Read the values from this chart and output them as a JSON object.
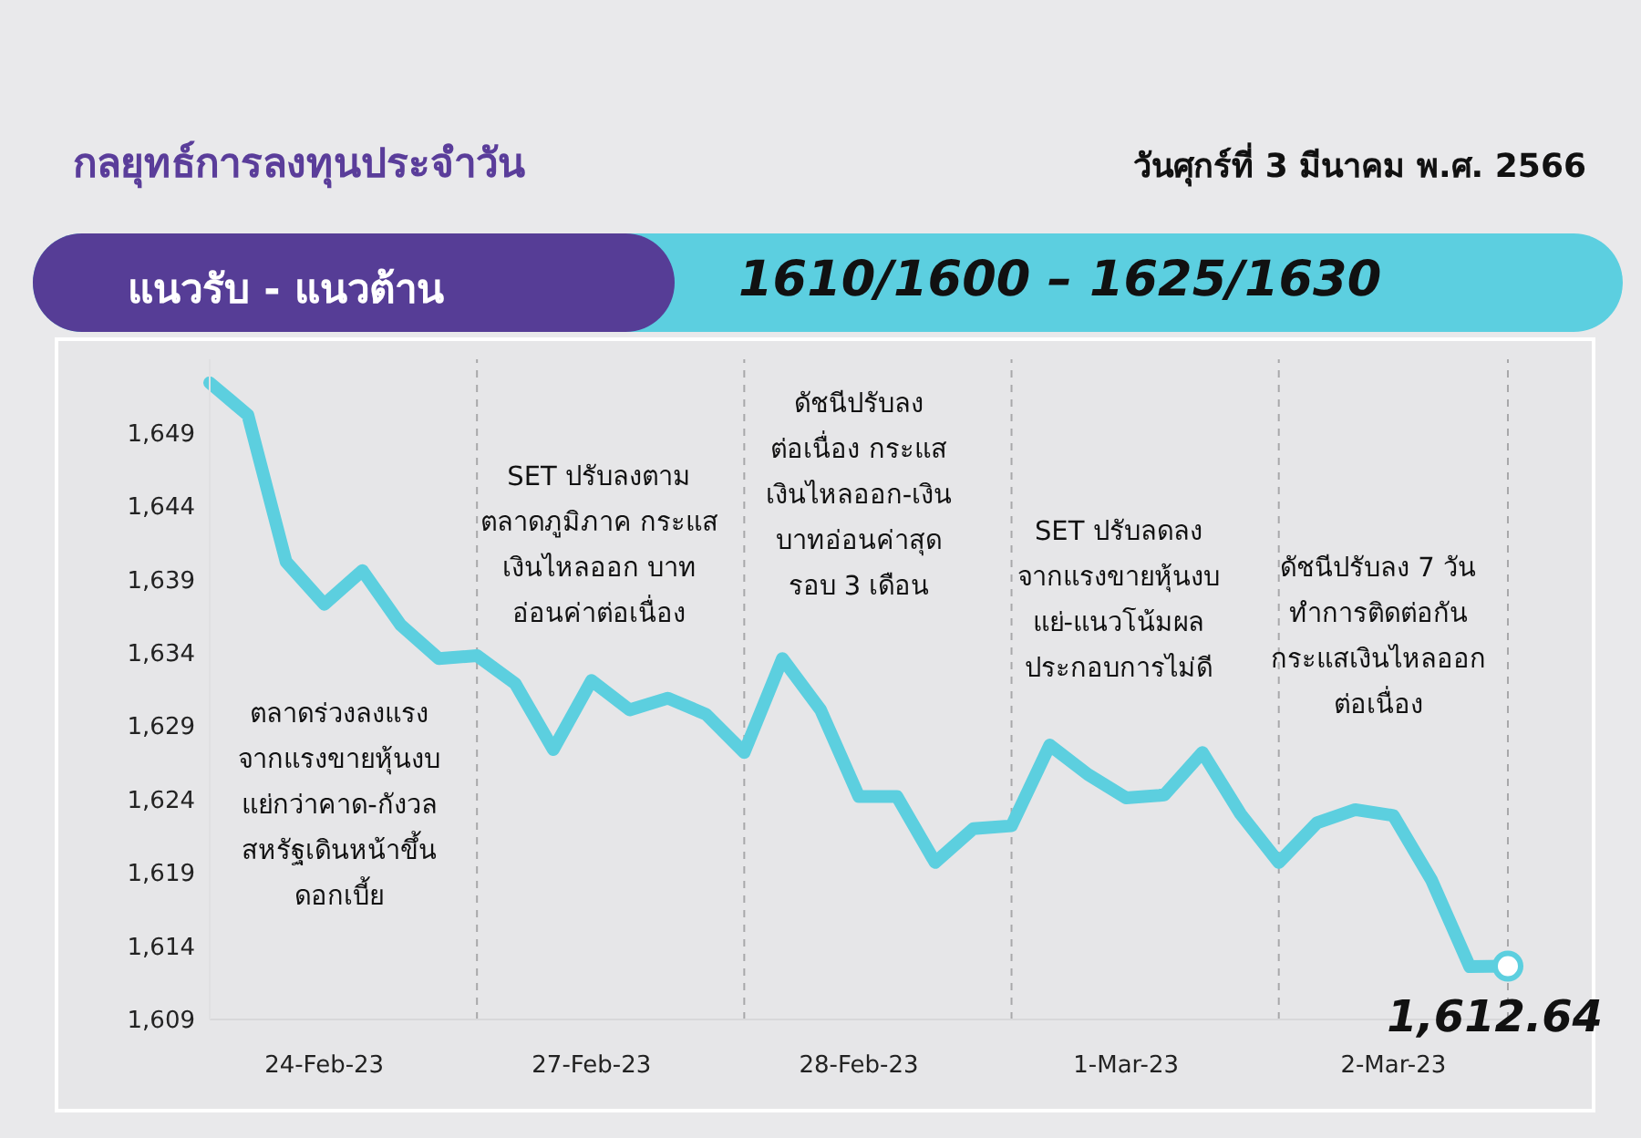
{
  "chart_data": {
    "type": "line",
    "title": "กลยุทธ์การลงทุนประจำวัน",
    "subtitle": "วันศุกร์ที่ 3 มีนาคม พ.ศ. 2566",
    "annotations": [
      "แนวรับ - แนวต้าน",
      "1610/1600 – 1625/1630",
      "ตลาดร่วงลงแรง\nจากแรงขายหุ้นงบ\nแย่กว่าคาด-กังวล\nสหรัฐเดินหน้าขึ้น\nดอกเบี้ย",
      "SET ปรับลงตาม\nตลาดภูมิภาค กระแส\nเงินไหลออก บาท\nอ่อนค่าต่อเนื่อง",
      "ดัชนีปรับลง\nต่อเนื่อง กระแส\nเงินไหลออก-เงิน\nบาทอ่อนค่าสุด\nรอบ 3 เดือน",
      "SET ปรับลดลง\nจากแรงขายหุ้นงบ\nแย่-แนวโน้มผล\nประกอบการไม่ดี",
      "ดัชนีปรับลง 7 วัน\nทำการติดต่อกัน\nกระแสเงินไหลออก\nต่อเนื่อง"
    ],
    "categories": [
      null,
      null,
      null,
      "24-Feb-23",
      null,
      null,
      null,
      null,
      null,
      null,
      "27-Feb-23",
      null,
      null,
      null,
      null,
      null,
      null,
      "28-Feb-23",
      null,
      null,
      null,
      null,
      null,
      null,
      "1-Mar-23",
      null,
      null,
      null,
      null,
      null,
      null,
      "2-Mar-23",
      null,
      null,
      null
    ],
    "series": [
      {
        "color": "#5ccfdf",
        "values": [
          1652.4,
          1650.2,
          1640.2,
          1637.3,
          1639.6,
          1635.9,
          1633.6,
          1633.8,
          1631.9,
          1627.4,
          1632.1,
          1630.1,
          1630.9,
          1629.8,
          1627.2,
          1633.6,
          1630.1,
          1624.2,
          1624.2,
          1619.7,
          1622.0,
          1622.2,
          1627.7,
          1625.7,
          1624.1,
          1624.3,
          1627.2,
          1623.0,
          1619.7,
          1622.4,
          1623.3,
          1622.9,
          1618.5,
          1612.6,
          1612.64
        ],
        "value_labels": [
          null,
          null,
          null,
          null,
          null,
          null,
          null,
          null,
          null,
          null,
          null,
          null,
          null,
          null,
          null,
          null,
          null,
          null,
          null,
          null,
          null,
          null,
          null,
          null,
          null,
          null,
          null,
          null,
          null,
          null,
          null,
          null,
          null,
          null,
          "1,612.64"
        ]
      }
    ],
    "ylim": [
      1609,
      1654
    ],
    "yticks": [
      {
        "value": 1609,
        "label": "1,609"
      },
      {
        "value": 1614,
        "label": "1,614"
      },
      {
        "value": 1619,
        "label": "1,619"
      },
      {
        "value": 1624,
        "label": "1,624"
      },
      {
        "value": 1629,
        "label": "1,629"
      },
      {
        "value": 1634,
        "label": "1,634"
      },
      {
        "value": 1639,
        "label": "1,639"
      },
      {
        "value": 1644,
        "label": "1,644"
      },
      {
        "value": 1649,
        "label": "1,649"
      }
    ],
    "grid": "x",
    "marker": "none",
    "line_style": "solid"
  }
}
